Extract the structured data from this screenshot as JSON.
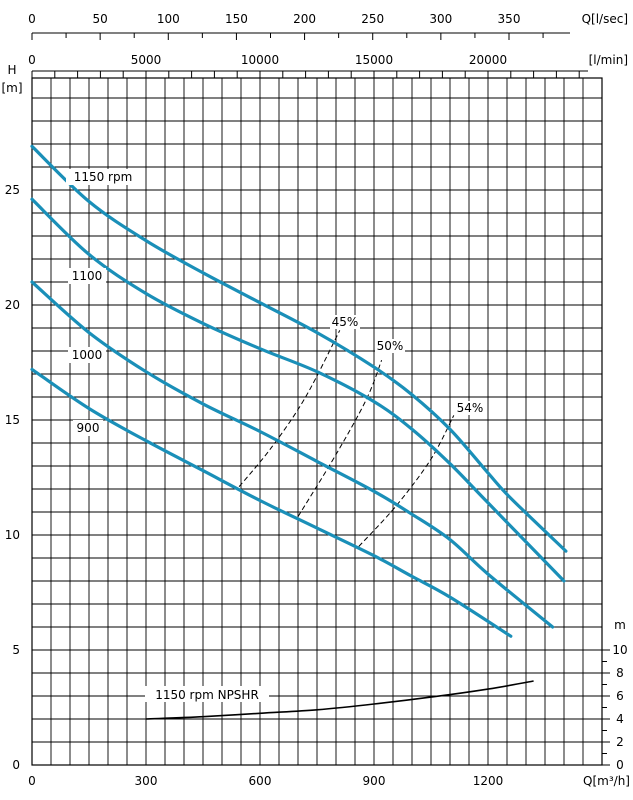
{
  "chart_data": {
    "type": "line",
    "colors": {
      "pump_curve": "#1a8fb8",
      "npshr_curve": "#000000",
      "grid": "#000000",
      "efficiency": "#000000"
    },
    "grid": true,
    "x_axis": {
      "label": "Q[m³/h]",
      "range": [
        0,
        1250
      ],
      "ticks": [
        "0",
        "300",
        "600",
        "900",
        "1200"
      ],
      "tick_values": [
        0,
        300,
        600,
        900,
        1200
      ]
    },
    "top_axis_lps": {
      "label": "Q[l/sec]",
      "ticks": [
        "0",
        "50",
        "100",
        "150",
        "200",
        "250",
        "300",
        "350"
      ],
      "tick_values": [
        0,
        50,
        100,
        150,
        200,
        250,
        300,
        350
      ]
    },
    "top_axis_lpm": {
      "label": "[l/min]",
      "ticks": [
        "0",
        "5000",
        "10000",
        "15000",
        "20000"
      ],
      "tick_values": [
        0,
        5000,
        10000,
        15000,
        20000
      ]
    },
    "y_axis": {
      "label_top": "H",
      "label_unit": "[m]",
      "range": [
        0,
        30
      ],
      "ticks": [
        "0",
        "5",
        "10",
        "15",
        "20",
        "25"
      ],
      "tick_values": [
        0,
        5,
        10,
        15,
        20,
        25
      ]
    },
    "npsh_axis": {
      "label": "m",
      "range": [
        0,
        10
      ],
      "ticks": [
        "0",
        "2",
        "4",
        "6",
        "8",
        "10"
      ],
      "tick_values": [
        0,
        2,
        4,
        6,
        8,
        10
      ]
    },
    "series": [
      {
        "name": "1150 rpm",
        "x": [
          0,
          150,
          300,
          450,
          600,
          750,
          900,
          1000,
          1100,
          1200,
          1260,
          1405
        ],
        "y": [
          26.9,
          24.5,
          22.8,
          21.4,
          20.1,
          18.8,
          17.3,
          16.1,
          14.6,
          12.7,
          11.6,
          9.3
        ]
      },
      {
        "name": "1100",
        "x": [
          0,
          150,
          300,
          450,
          600,
          750,
          900,
          1000,
          1100,
          1200,
          1400
        ],
        "y": [
          24.6,
          22.2,
          20.5,
          19.2,
          18.1,
          17.1,
          15.8,
          14.6,
          13.1,
          11.4,
          8.0
        ]
      },
      {
        "name": "1000",
        "x": [
          0,
          150,
          300,
          450,
          600,
          750,
          900,
          1000,
          1100,
          1200,
          1370
        ],
        "y": [
          21.0,
          18.8,
          17.1,
          15.7,
          14.5,
          13.2,
          11.9,
          10.9,
          9.8,
          8.3,
          6.0
        ]
      },
      {
        "name": "900",
        "x": [
          0,
          150,
          300,
          450,
          600,
          750,
          900,
          1000,
          1100,
          1260
        ],
        "y": [
          17.2,
          15.5,
          14.1,
          12.8,
          11.5,
          10.3,
          9.1,
          8.2,
          7.3,
          5.6
        ]
      }
    ],
    "npshr": {
      "name": "1150 rpm NPSHR",
      "x": [
        300,
        450,
        600,
        750,
        900,
        1050,
        1200,
        1320
      ],
      "y": [
        4.0,
        4.2,
        4.5,
        4.8,
        5.3,
        5.9,
        6.6,
        7.3
      ]
    },
    "efficiency_lines": [
      {
        "label": "45%",
        "x": [
          545,
          630,
          720,
          810
        ],
        "y": [
          12.1,
          13.8,
          16.0,
          18.9
        ]
      },
      {
        "label": "50%",
        "x": [
          700,
          800,
          880,
          920
        ],
        "y": [
          10.8,
          13.5,
          15.9,
          17.6
        ]
      },
      {
        "label": "54%",
        "x": [
          860,
          960,
          1050,
          1110
        ],
        "y": [
          9.5,
          11.3,
          13.3,
          15.2
        ]
      }
    ]
  }
}
